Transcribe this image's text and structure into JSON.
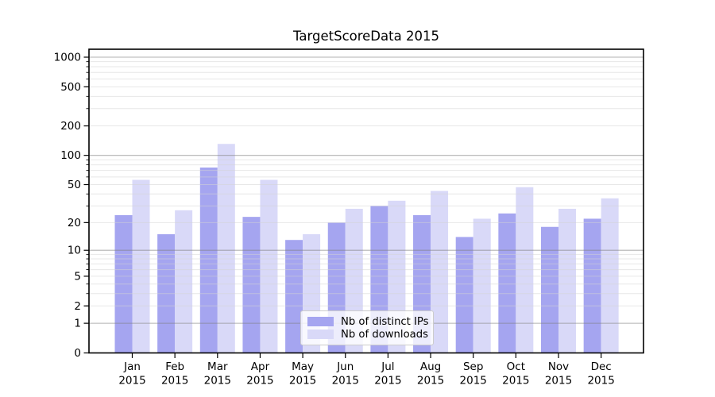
{
  "chart_data": {
    "type": "bar",
    "title": "TargetScoreData 2015",
    "xlabel": "",
    "ylabel": "",
    "scale": "log1p",
    "ylim": [
      0,
      1220
    ],
    "grid": true,
    "categories": [
      "Jan",
      "Feb",
      "Mar",
      "Apr",
      "May",
      "Jun",
      "Jul",
      "Aug",
      "Sep",
      "Oct",
      "Nov",
      "Dec"
    ],
    "year_label": "2015",
    "series": [
      {
        "name": "Nb of distinct IPs",
        "color": "#a5a5f0",
        "values": [
          24,
          15,
          75,
          23,
          13,
          20,
          30,
          24,
          14,
          25,
          18,
          22
        ]
      },
      {
        "name": "Nb of downloads",
        "color": "#d9d9f8",
        "values": [
          56,
          27,
          131,
          56,
          15,
          28,
          34,
          43,
          22,
          47,
          28,
          36
        ]
      }
    ],
    "y_tick_labels": [
      "0",
      "1",
      "2",
      "5",
      "10",
      "20",
      "50",
      "100",
      "200",
      "500",
      "1000"
    ],
    "y_tick_values": [
      0,
      1,
      2,
      5,
      10,
      20,
      50,
      100,
      200,
      500,
      1000
    ],
    "y_decade_gridlines": [
      1,
      10,
      100,
      1000
    ],
    "y_minor_gridlines": [
      2,
      3,
      4,
      5,
      6,
      7,
      8,
      9,
      20,
      30,
      40,
      50,
      60,
      70,
      80,
      90,
      200,
      300,
      400,
      500,
      600,
      700,
      800,
      900
    ],
    "legend": {
      "position": "lower-center",
      "items": [
        "Nb of distinct IPs",
        "Nb of downloads"
      ]
    },
    "colors": {
      "decade_grid": "#808080",
      "minor_grid": "#d4d4d4",
      "spine": "#000000",
      "text": "#000000"
    }
  }
}
